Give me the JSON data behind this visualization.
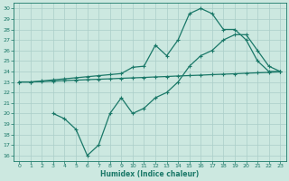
{
  "xlabel": "Humidex (Indice chaleur)",
  "bg_color": "#cce8e0",
  "grid_color": "#aacec8",
  "line_color": "#1a7868",
  "xlim": [
    -0.5,
    23.5
  ],
  "ylim": [
    15.5,
    30.5
  ],
  "xticks": [
    0,
    1,
    2,
    3,
    4,
    5,
    6,
    7,
    8,
    9,
    10,
    11,
    12,
    13,
    14,
    15,
    16,
    17,
    18,
    19,
    20,
    21,
    22,
    23
  ],
  "yticks": [
    16,
    17,
    18,
    19,
    20,
    21,
    22,
    23,
    24,
    25,
    26,
    27,
    28,
    29,
    30
  ],
  "line1_x": [
    0,
    1,
    2,
    3,
    4,
    5,
    6,
    7,
    8,
    9,
    10,
    11,
    12,
    13,
    14,
    15,
    16,
    17,
    18,
    19,
    20,
    21,
    22,
    23
  ],
  "line1_y": [
    23.0,
    23.0,
    23.04,
    23.08,
    23.13,
    23.17,
    23.22,
    23.26,
    23.3,
    23.35,
    23.39,
    23.43,
    23.48,
    23.52,
    23.57,
    23.61,
    23.65,
    23.7,
    23.74,
    23.78,
    23.83,
    23.87,
    23.91,
    23.96
  ],
  "line2_x": [
    0,
    1,
    2,
    3,
    4,
    5,
    6,
    7,
    8,
    9,
    10,
    11,
    12,
    13,
    14,
    15,
    16,
    17,
    18,
    19,
    20,
    21,
    22,
    23
  ],
  "line2_y": [
    23.0,
    23.0,
    23.1,
    23.2,
    23.3,
    23.4,
    23.5,
    23.6,
    23.7,
    23.8,
    24.4,
    24.5,
    26.5,
    25.5,
    27.0,
    29.5,
    30.0,
    29.5,
    28.0,
    28.0,
    27.0,
    25.0,
    24.0,
    24.0
  ],
  "line3_x": [
    3,
    4,
    5,
    6,
    7,
    8,
    9,
    10,
    11,
    12,
    13,
    14,
    15,
    16,
    17,
    18,
    19,
    20,
    21,
    22,
    23
  ],
  "line3_y": [
    20.0,
    19.5,
    18.5,
    16.0,
    17.0,
    20.0,
    21.5,
    20.0,
    20.5,
    21.5,
    22.0,
    23.0,
    24.5,
    25.5,
    26.0,
    27.0,
    27.5,
    27.5,
    26.0,
    24.5,
    24.0
  ]
}
